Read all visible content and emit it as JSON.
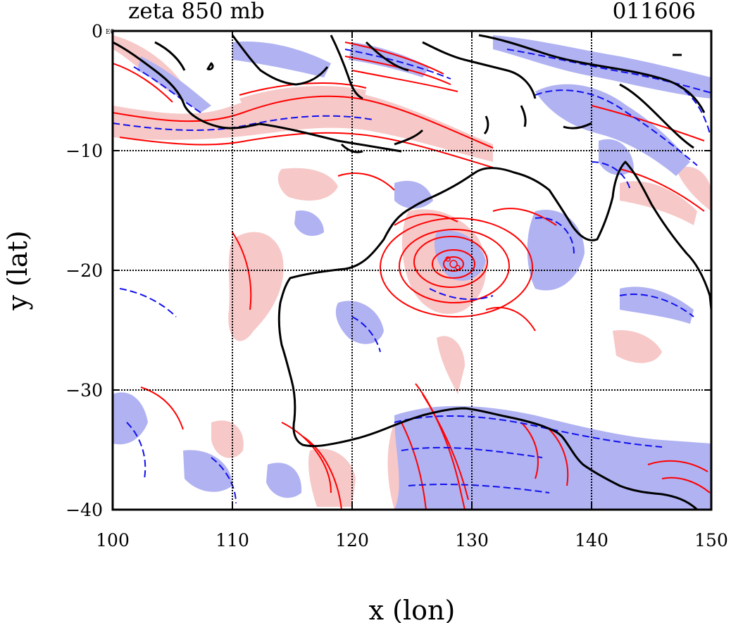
{
  "chart_data": {
    "type": "heatmap",
    "title_left": "zeta 850 mb",
    "title_right": "011606",
    "xlabel": "x (lon)",
    "ylabel": "y (lat)",
    "xlim": [
      100,
      150
    ],
    "ylim": [
      -40,
      0
    ],
    "x_ticks": [
      100,
      110,
      120,
      130,
      140,
      150
    ],
    "y_ticks": [
      0,
      -10,
      -20,
      -30,
      -40
    ],
    "x_tick_labels": [
      "100",
      "110",
      "120",
      "130",
      "140",
      "150"
    ],
    "y_tick_labels": [
      "0",
      "−10",
      "−20",
      "−30",
      "−40"
    ],
    "corner_label": "E0",
    "grid": true,
    "colors": {
      "positive_fill": "#f7c8c8",
      "negative_fill": "#b0b2f2",
      "positive_contour": "#ff0000",
      "negative_contour": "#1010ee",
      "coastline": "#000000"
    },
    "features": {
      "cyclone_center": [
        129.5,
        -19.5
      ]
    }
  }
}
